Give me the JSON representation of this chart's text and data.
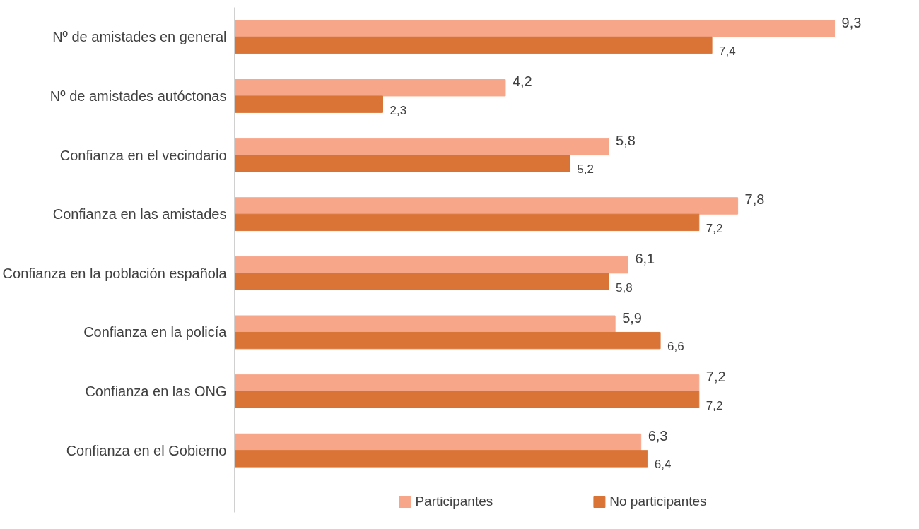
{
  "chart_data": {
    "type": "bar",
    "orientation": "horizontal",
    "categories": [
      "Nº de amistades en general",
      "Nº de amistades autóctonas",
      "Confianza en el vecindario",
      "Confianza en las amistades",
      "Confianza en la población española",
      "Confianza en la policía",
      "Confianza en las ONG",
      "Confianza en el Gobierno"
    ],
    "series": [
      {
        "name": "Participantes",
        "color": "#f7a68a",
        "values": [
          9.3,
          4.2,
          5.8,
          7.8,
          6.1,
          5.9,
          7.2,
          6.3
        ],
        "value_labels": [
          "9,3",
          "4,2",
          "5,8",
          "7,8",
          "6,1",
          "5,9",
          "7,2",
          "6,3"
        ]
      },
      {
        "name": "No participantes",
        "color": "#d97436",
        "values": [
          7.4,
          2.3,
          5.2,
          7.2,
          5.8,
          6.6,
          7.2,
          6.4
        ],
        "value_labels": [
          "7,4",
          "2,3",
          "5,2",
          "7,2",
          "5,8",
          "6,6",
          "7,2",
          "6,4"
        ]
      }
    ],
    "legend": "bottom",
    "grid": false,
    "tick_labels": "y"
  }
}
